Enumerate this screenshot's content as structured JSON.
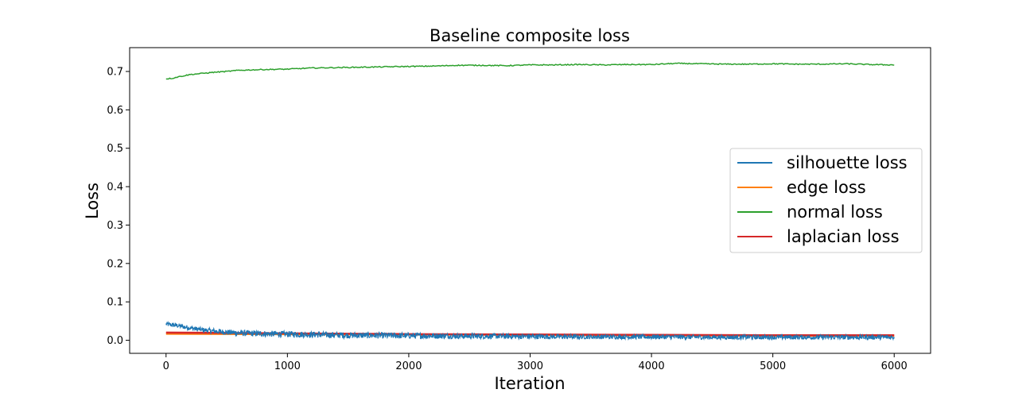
{
  "chart_data": {
    "type": "line",
    "title": "Baseline composite loss",
    "xlabel": "Iteration",
    "ylabel": "Loss",
    "xlim": [
      -300,
      6300
    ],
    "ylim": [
      -0.034,
      0.762
    ],
    "xticks": [
      0,
      1000,
      2000,
      3000,
      4000,
      5000,
      6000
    ],
    "yticks": [
      0.0,
      0.1,
      0.2,
      0.3,
      0.4,
      0.5,
      0.6,
      0.7
    ],
    "xtick_labels": [
      "0",
      "1000",
      "2000",
      "3000",
      "4000",
      "5000",
      "6000"
    ],
    "ytick_labels": [
      "0.0",
      "0.1",
      "0.2",
      "0.3",
      "0.4",
      "0.5",
      "0.6",
      "0.7"
    ],
    "grid": false,
    "legend_position": "right",
    "series": [
      {
        "name": "silhouette loss",
        "color": "#1f77b4",
        "x": [
          0,
          100,
          200,
          300,
          400,
          500,
          600,
          800,
          1000,
          1500,
          2000,
          2500,
          3000,
          3500,
          4000,
          4500,
          5000,
          5500,
          6000
        ],
        "y": [
          0.042,
          0.038,
          0.032,
          0.027,
          0.024,
          0.021,
          0.019,
          0.017,
          0.016,
          0.013,
          0.012,
          0.011,
          0.01,
          0.009,
          0.009,
          0.008,
          0.008,
          0.008,
          0.008
        ],
        "noise": [
          0.006,
          0.006,
          0.006,
          0.006,
          0.007,
          0.007,
          0.008,
          0.008,
          0.008,
          0.008,
          0.008,
          0.007,
          0.007,
          0.006,
          0.006,
          0.006,
          0.006,
          0.006,
          0.006
        ]
      },
      {
        "name": "edge loss",
        "color": "#ff7f0e",
        "x": [
          0,
          1000,
          2000,
          3000,
          4000,
          5000,
          6000
        ],
        "y": [
          0.017,
          0.016,
          0.015,
          0.014,
          0.013,
          0.012,
          0.012
        ]
      },
      {
        "name": "normal loss",
        "color": "#2ca02c",
        "x": [
          0,
          50,
          100,
          200,
          300,
          400,
          500,
          600,
          700,
          800,
          1000,
          1200,
          1400,
          1600,
          1800,
          2000,
          2200,
          2400,
          2600,
          2800,
          3000,
          3200,
          3400,
          3600,
          3800,
          4000,
          4200,
          4400,
          4600,
          4800,
          5000,
          5200,
          5400,
          5600,
          5800,
          6000
        ],
        "y": [
          0.681,
          0.682,
          0.686,
          0.692,
          0.695,
          0.698,
          0.7,
          0.703,
          0.704,
          0.705,
          0.706,
          0.709,
          0.71,
          0.711,
          0.712,
          0.713,
          0.714,
          0.716,
          0.716,
          0.715,
          0.717,
          0.717,
          0.718,
          0.717,
          0.718,
          0.718,
          0.721,
          0.72,
          0.719,
          0.719,
          0.72,
          0.719,
          0.719,
          0.72,
          0.718,
          0.717
        ]
      },
      {
        "name": "laplacian loss",
        "color": "#d62728",
        "x": [
          0,
          1000,
          2000,
          3000,
          4000,
          5000,
          6000
        ],
        "y": [
          0.02,
          0.018,
          0.016,
          0.015,
          0.014,
          0.013,
          0.013
        ]
      }
    ]
  }
}
